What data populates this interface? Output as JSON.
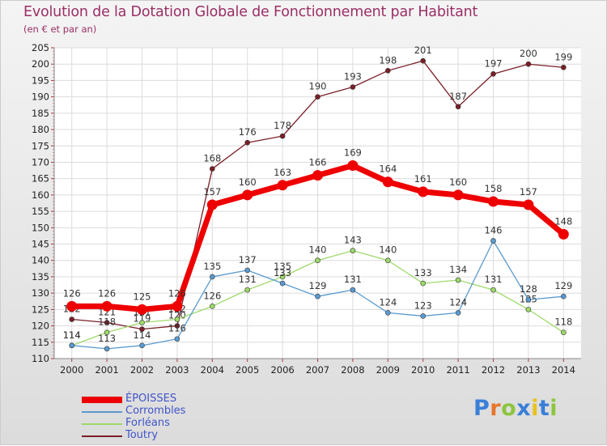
{
  "title": "Evolution de la Dotation Globale de Fonctionnement par Habitant",
  "subtitle": "(en € et par an)",
  "logo": {
    "text": "Proxiti",
    "letters": [
      "P",
      "r",
      "o",
      "x",
      "i",
      "t",
      "i"
    ],
    "colors": [
      "#3a7fd8",
      "#e8762a",
      "#8cc63f",
      "#3a7fd8",
      "#e8c21a",
      "#3a7fd8",
      "#8cc63f"
    ]
  },
  "chart_data": {
    "type": "line",
    "title": "Evolution de la Dotation Globale de Fonctionnement par Habitant",
    "subtitle": "(en € et par an)",
    "xlabel": "",
    "ylabel": "",
    "ylim": [
      110,
      205
    ],
    "yticks": [
      110,
      115,
      120,
      125,
      130,
      135,
      140,
      145,
      150,
      155,
      160,
      165,
      170,
      175,
      180,
      185,
      190,
      195,
      200,
      205
    ],
    "grid": true,
    "legend_position": "bottom-left",
    "categories": [
      "2000",
      "2001",
      "2002",
      "2003",
      "2004",
      "2005",
      "2006",
      "2007",
      "2008",
      "2009",
      "2010",
      "2011",
      "2012",
      "2013",
      "2014"
    ],
    "series": [
      {
        "name": "Toutry",
        "color": "#7a1f28",
        "values": [
          122,
          121,
          119,
          120,
          168,
          176,
          178,
          190,
          193,
          198,
          201,
          187,
          197,
          200,
          199
        ],
        "labels": [
          "122",
          "121",
          "119",
          "120",
          "168",
          "176",
          "178",
          "190",
          "193",
          "198",
          "201",
          "187",
          "197",
          "200",
          "199"
        ]
      },
      {
        "name": "Forléans",
        "color": "#9ed96a",
        "values": [
          114,
          118,
          121,
          122,
          126,
          131,
          135,
          140,
          143,
          140,
          133,
          134,
          131,
          125,
          118
        ],
        "labels": [
          "114",
          "118",
          "121",
          "122",
          "126",
          "131",
          "135",
          "140",
          "143",
          "140",
          "133",
          "134",
          "131",
          "125",
          "118"
        ]
      },
      {
        "name": "Corrombles",
        "color": "#5a9ad0",
        "values": [
          114,
          113,
          114,
          116,
          135,
          137,
          133,
          129,
          131,
          124,
          123,
          124,
          146,
          128,
          129
        ],
        "labels": [
          "114",
          "113",
          "114",
          "116",
          "135",
          "137",
          "133",
          "129",
          "131",
          "124",
          "123",
          "124",
          "146",
          "128",
          "129"
        ]
      },
      {
        "name": "ÉPOISSES",
        "color": "#ee0000",
        "values": [
          126,
          126,
          125,
          126,
          157,
          160,
          163,
          166,
          169,
          164,
          161,
          160,
          158,
          157,
          148
        ],
        "labels": [
          "126",
          "126",
          "125",
          "126",
          "157",
          "160",
          "163",
          "166",
          "169",
          "164",
          "161",
          "160",
          "158",
          "157",
          "148"
        ]
      }
    ],
    "legend": [
      "ÉPOISSES",
      "Corrombles",
      "Forléans",
      "Toutry"
    ]
  }
}
